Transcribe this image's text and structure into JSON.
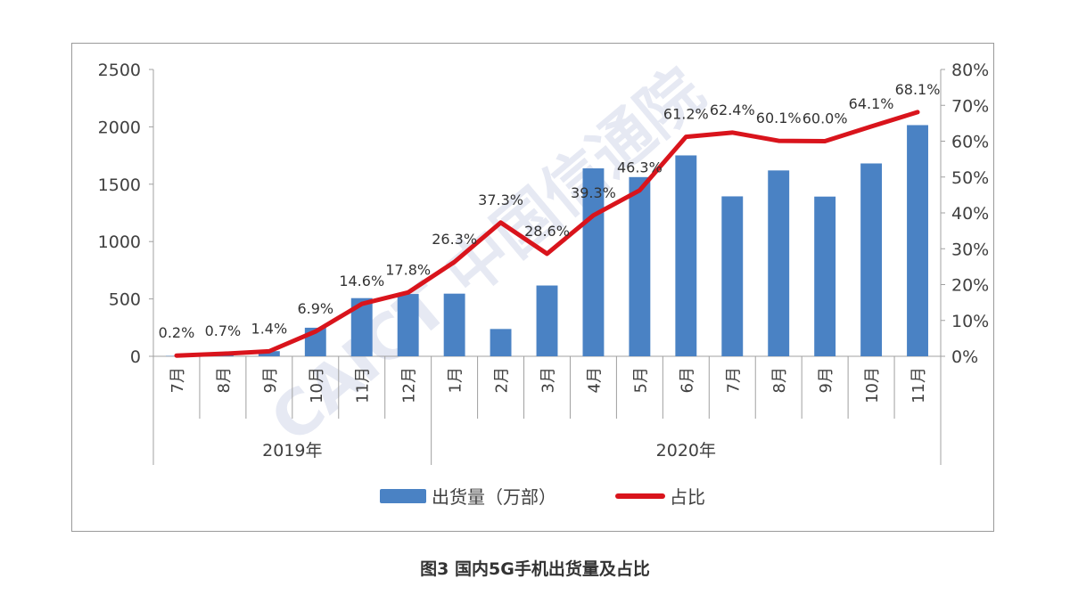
{
  "chart_data": {
    "type": "bar+line",
    "title": "图3  国内5G手机出货量及占比",
    "categories": [
      "7月",
      "8月",
      "9月",
      "10月",
      "11月",
      "12月",
      "1月",
      "2月",
      "3月",
      "4月",
      "5月",
      "6月",
      "7月",
      "8月",
      "9月",
      "10月",
      "11月"
    ],
    "groups": [
      {
        "label": "2019年",
        "count": 6
      },
      {
        "label": "2020年",
        "count": 11
      }
    ],
    "series": [
      {
        "name": "出货量（万部）",
        "type": "bar",
        "axis": "left",
        "color": "#4a82c4",
        "values": [
          3,
          10,
          45,
          249,
          507,
          543,
          546,
          238,
          617,
          1638,
          1562,
          1751,
          1394,
          1620,
          1392,
          1681,
          2015
        ]
      },
      {
        "name": "占比",
        "type": "line",
        "axis": "right",
        "color": "#d9141c",
        "values": [
          0.2,
          0.7,
          1.4,
          6.9,
          14.6,
          17.8,
          26.3,
          37.3,
          28.6,
          39.3,
          46.3,
          61.2,
          62.4,
          60.1,
          60.0,
          64.1,
          68.1
        ],
        "labels": [
          "0.2%",
          "0.7%",
          "1.4%",
          "6.9%",
          "14.6%",
          "17.8%",
          "26.3%",
          "37.3%",
          "28.6%",
          "39.3%",
          "46.3%",
          "61.2%",
          "62.4%",
          "60.1%",
          "60.0%",
          "64.1%",
          "68.1%"
        ]
      }
    ],
    "ylim_left": [
      0,
      2500
    ],
    "yticks_left": [
      "0",
      "500",
      "1000",
      "1500",
      "2000",
      "2500"
    ],
    "ylim_right": [
      0,
      80
    ],
    "yticks_right": [
      "0%",
      "10%",
      "20%",
      "30%",
      "40%",
      "50%",
      "60%",
      "70%",
      "80%"
    ],
    "grid": false,
    "legend_placement": "bottom",
    "watermark": "CAICT 中国信通院"
  }
}
